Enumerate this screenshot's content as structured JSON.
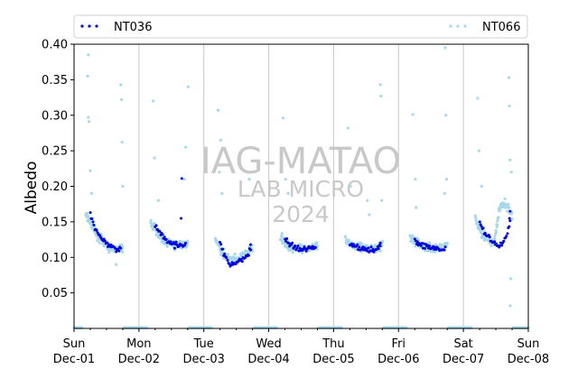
{
  "chart_data": {
    "type": "scatter",
    "ylabel": "Albedo",
    "ylim": [
      0,
      0.4
    ],
    "yticks": [
      0.05,
      0.1,
      0.15,
      0.2,
      0.25,
      0.3,
      0.35,
      0.4
    ],
    "ytick_labels": [
      "0.05",
      "0.10",
      "0.15",
      "0.20",
      "0.25",
      "0.30",
      "0.35",
      "0.40"
    ],
    "xlim": [
      0,
      7
    ],
    "xticks": [
      {
        "x": 0,
        "day": "Sun",
        "date": "Dec-01"
      },
      {
        "x": 1,
        "day": "Mon",
        "date": "Dec-02"
      },
      {
        "x": 2,
        "day": "Tue",
        "date": "Dec-03"
      },
      {
        "x": 3,
        "day": "Wed",
        "date": "Dec-04"
      },
      {
        "x": 4,
        "day": "Thu",
        "date": "Dec-05"
      },
      {
        "x": 5,
        "day": "Fri",
        "date": "Dec-06"
      },
      {
        "x": 6,
        "day": "Sat",
        "date": "Dec-07"
      },
      {
        "x": 7,
        "day": "Sun",
        "date": "Dec-08"
      }
    ],
    "grid_x": true,
    "legend_position": "top",
    "watermark": [
      "IAG-MATAO",
      "LAB MICRO",
      "2024"
    ],
    "series": [
      {
        "name": "NT036",
        "color": "#0000dd",
        "days": [
          {
            "offset": 0,
            "start": 0.25,
            "end": 0.72,
            "profile": [
              0.16,
              0.14,
              0.13,
              0.12,
              0.115,
              0.113,
              0.113
            ]
          },
          {
            "offset": 1,
            "start": 0.25,
            "end": 0.72,
            "profile": [
              0.145,
              0.135,
              0.125,
              0.12,
              0.118,
              0.117,
              0.118
            ]
          },
          {
            "offset": 2,
            "start": 0.25,
            "end": 0.72,
            "profile": [
              0.12,
              0.1,
              0.09,
              0.092,
              0.095,
              0.1,
              0.11
            ]
          },
          {
            "offset": 3,
            "start": 0.25,
            "end": 0.72,
            "profile": [
              0.125,
              0.118,
              0.113,
              0.112,
              0.111,
              0.112,
              0.113
            ]
          },
          {
            "offset": 4,
            "start": 0.25,
            "end": 0.72,
            "profile": [
              0.12,
              0.116,
              0.114,
              0.112,
              0.111,
              0.112,
              0.114
            ]
          },
          {
            "offset": 5,
            "start": 0.25,
            "end": 0.72,
            "profile": [
              0.125,
              0.118,
              0.115,
              0.113,
              0.112,
              0.112,
              0.113
            ]
          },
          {
            "offset": 6,
            "start": 0.25,
            "end": 0.72,
            "profile": [
              0.15,
              0.135,
              0.125,
              0.118,
              0.115,
              0.125,
              0.15
            ]
          }
        ],
        "spikes": [
          [
            1.66,
            0.211
          ],
          [
            1.65,
            0.155
          ],
          [
            6.72,
            0.165
          ],
          [
            6.71,
            0.155
          ],
          [
            2.72,
            0.118
          ],
          [
            4.72,
            0.12
          ]
        ]
      },
      {
        "name": "NT066",
        "color": "#a8d8ec",
        "days": [
          {
            "offset": 0,
            "start": 0.18,
            "end": 0.75,
            "profile": [
              0.16,
              0.145,
              0.13,
              0.12,
              0.113,
              0.111,
              0.112
            ]
          },
          {
            "offset": 1,
            "start": 0.18,
            "end": 0.75,
            "profile": [
              0.15,
              0.135,
              0.125,
              0.12,
              0.117,
              0.117,
              0.12
            ]
          },
          {
            "offset": 2,
            "start": 0.18,
            "end": 0.75,
            "profile": [
              0.125,
              0.108,
              0.098,
              0.097,
              0.099,
              0.105,
              0.115
            ]
          },
          {
            "offset": 3,
            "start": 0.18,
            "end": 0.75,
            "profile": [
              0.13,
              0.118,
              0.113,
              0.111,
              0.111,
              0.113,
              0.116
            ]
          },
          {
            "offset": 4,
            "start": 0.18,
            "end": 0.75,
            "profile": [
              0.125,
              0.118,
              0.115,
              0.113,
              0.112,
              0.113,
              0.118
            ]
          },
          {
            "offset": 5,
            "start": 0.18,
            "end": 0.75,
            "profile": [
              0.13,
              0.12,
              0.116,
              0.113,
              0.112,
              0.113,
              0.118
            ]
          },
          {
            "offset": 6,
            "start": 0.18,
            "end": 0.75,
            "profile": [
              0.155,
              0.135,
              0.125,
              0.118,
              0.17,
              0.175,
              0.16
            ]
          }
        ],
        "spikes": [
          [
            0.22,
            0.385
          ],
          [
            0.21,
            0.355
          ],
          [
            0.22,
            0.297
          ],
          [
            0.23,
            0.291
          ],
          [
            0.25,
            0.222
          ],
          [
            0.27,
            0.19
          ],
          [
            0.65,
            0.09
          ],
          [
            0.72,
            0.343
          ],
          [
            0.73,
            0.322
          ],
          [
            0.74,
            0.262
          ],
          [
            0.75,
            0.2
          ],
          [
            1.22,
            0.32
          ],
          [
            1.24,
            0.24
          ],
          [
            1.3,
            0.18
          ],
          [
            1.76,
            0.34
          ],
          [
            1.72,
            0.255
          ],
          [
            1.7,
            0.21
          ],
          [
            2.22,
            0.307
          ],
          [
            2.26,
            0.265
          ],
          [
            2.24,
            0.22
          ],
          [
            2.28,
            0.19
          ],
          [
            2.7,
            0.21
          ],
          [
            3.22,
            0.296
          ],
          [
            3.26,
            0.21
          ],
          [
            3.3,
            0.19
          ],
          [
            4.22,
            0.282
          ],
          [
            4.26,
            0.2
          ],
          [
            4.52,
            0.18
          ],
          [
            4.55,
            0.16
          ],
          [
            4.72,
            0.343
          ],
          [
            4.73,
            0.327
          ],
          [
            4.74,
            0.18
          ],
          [
            5.22,
            0.301
          ],
          [
            5.26,
            0.21
          ],
          [
            5.27,
            0.17
          ],
          [
            5.72,
            0.395
          ],
          [
            5.73,
            0.3
          ],
          [
            5.74,
            0.21
          ],
          [
            5.71,
            0.19
          ],
          [
            6.22,
            0.324
          ],
          [
            6.24,
            0.25
          ],
          [
            6.28,
            0.2
          ],
          [
            6.7,
            0.353
          ],
          [
            6.71,
            0.313
          ],
          [
            6.72,
            0.237
          ],
          [
            6.73,
            0.07
          ],
          [
            6.72,
            0.032
          ],
          [
            6.74,
            0.22
          ]
        ]
      }
    ]
  }
}
